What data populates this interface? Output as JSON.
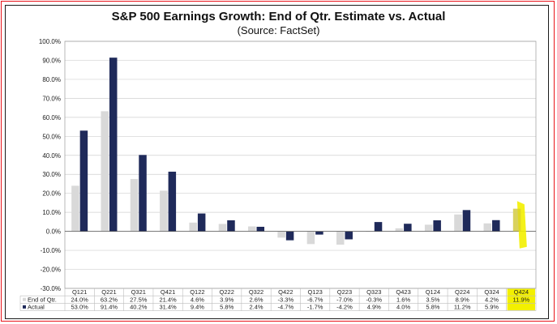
{
  "chart_data": {
    "type": "bar",
    "title": "S&P 500 Earnings Growth: End of Qtr. Estimate vs. Actual",
    "subtitle": "(Source: FactSet)",
    "categories": [
      "Q121",
      "Q221",
      "Q321",
      "Q421",
      "Q122",
      "Q222",
      "Q322",
      "Q422",
      "Q123",
      "Q223",
      "Q323",
      "Q423",
      "Q124",
      "Q224",
      "Q324",
      "Q424"
    ],
    "series": [
      {
        "name": "End of Qtr.",
        "color": "#d9d9d9",
        "values": [
          24.0,
          63.2,
          27.5,
          21.4,
          4.6,
          3.9,
          2.6,
          -3.3,
          -6.7,
          -7.0,
          -0.3,
          1.6,
          3.5,
          8.9,
          4.2,
          11.9
        ],
        "labels": [
          "24.0%",
          "63.2%",
          "27.5%",
          "21.4%",
          "4.6%",
          "3.9%",
          "2.6%",
          "-3.3%",
          "-6.7%",
          "-7.0%",
          "-0.3%",
          "1.6%",
          "3.5%",
          "8.9%",
          "4.2%",
          "11.9%"
        ]
      },
      {
        "name": "Actual",
        "color": "#1f2a5a",
        "values": [
          53.0,
          91.4,
          40.2,
          31.4,
          9.4,
          5.8,
          2.4,
          -4.7,
          -1.7,
          -4.2,
          4.9,
          4.0,
          5.8,
          11.2,
          5.9,
          null
        ],
        "labels": [
          "53.0%",
          "91.4%",
          "40.2%",
          "31.4%",
          "9.4%",
          "5.8%",
          "2.4%",
          "-4.7%",
          "-1.7%",
          "-4.2%",
          "4.9%",
          "4.0%",
          "5.8%",
          "11.2%",
          "5.9%",
          ""
        ]
      }
    ],
    "ylim": [
      -30,
      100
    ],
    "ytick_step": 10,
    "ytick_labels": [
      "-30.0%",
      "-20.0%",
      "-10.0%",
      "0.0%",
      "10.0%",
      "20.0%",
      "30.0%",
      "40.0%",
      "50.0%",
      "60.0%",
      "70.0%",
      "80.0%",
      "90.0%",
      "100.0%"
    ],
    "grid": true,
    "legend": "data-table",
    "highlight": {
      "category": "Q424",
      "color": "#f3f000"
    }
  },
  "colors": {
    "frame": "#e8141b",
    "estimate": "#d9d9d9",
    "actual": "#1f2a5a",
    "highlight": "#f3f000"
  }
}
